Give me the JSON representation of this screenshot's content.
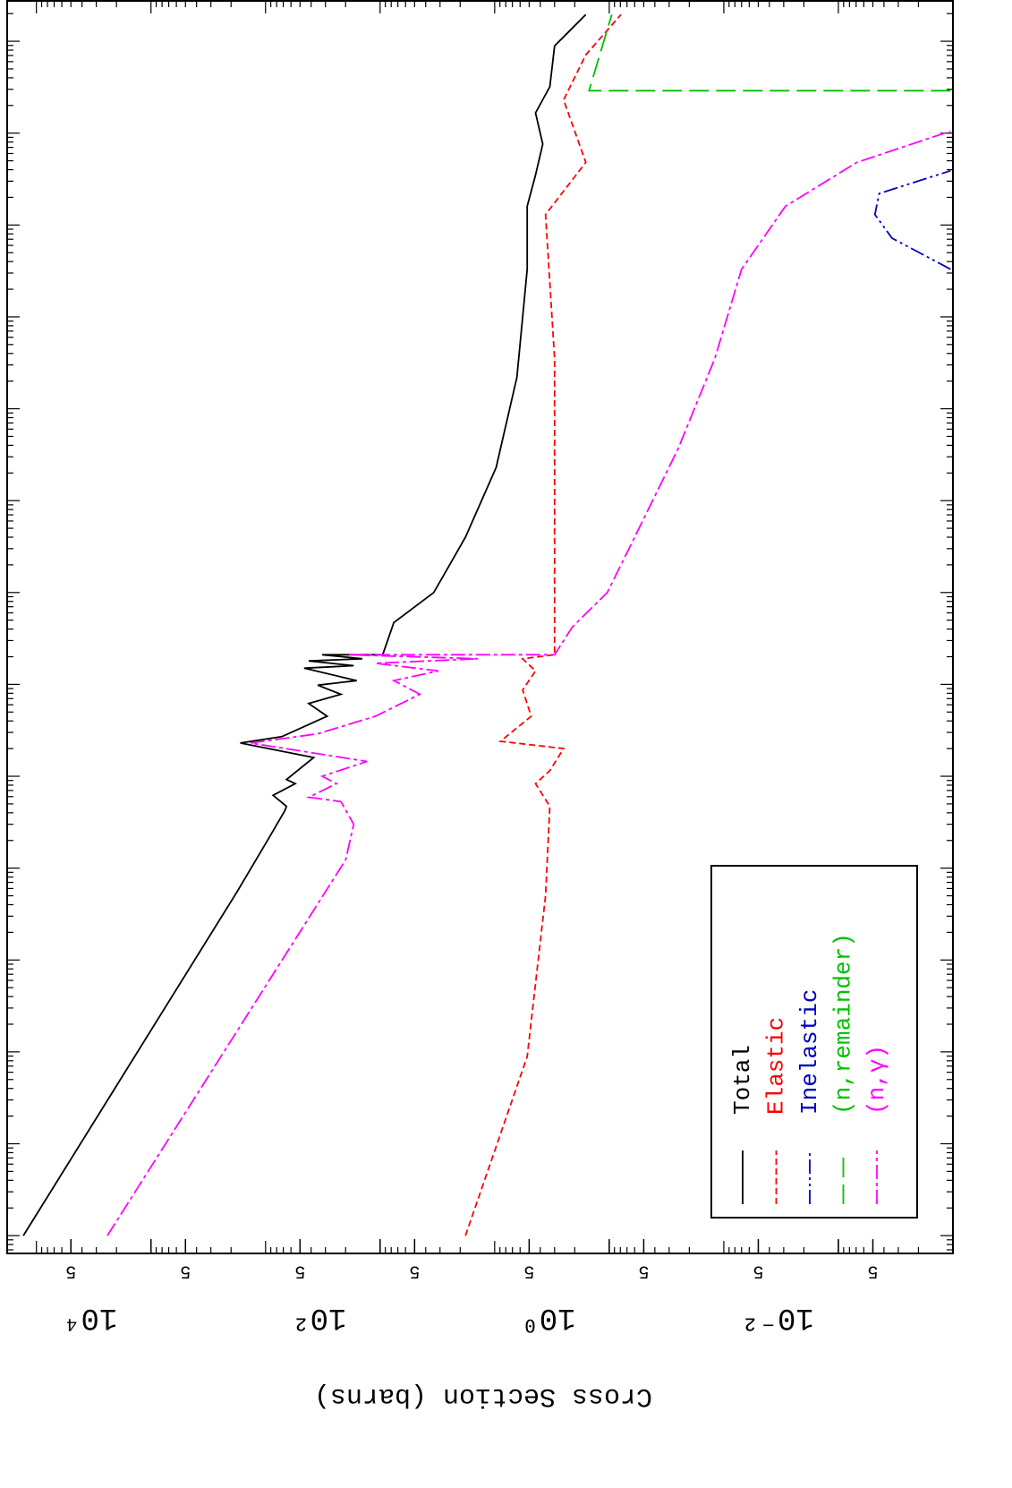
{
  "chart_data": {
    "type": "line",
    "xscale": "log",
    "yscale": "log",
    "grid": false,
    "legend_position": "lower left",
    "ylabel": "Cross Section (barns)",
    "xlim": [
      6.4e-07,
      27500000.0
    ],
    "ylim": [
      0.001,
      180000
    ],
    "yticks": [
      {
        "value": 50000,
        "label": "5"
      },
      {
        "value": 10000,
        "label": "10⁴"
      },
      {
        "value": 5000,
        "label": "5"
      },
      {
        "value": 500,
        "label": "5"
      },
      {
        "value": 100,
        "label": "10²"
      },
      {
        "value": 50,
        "label": "5"
      },
      {
        "value": 5,
        "label": "5"
      },
      {
        "value": 1,
        "label": "10⁰"
      },
      {
        "value": 0.5,
        "label": "5"
      },
      {
        "value": 0.05,
        "label": "5"
      },
      {
        "value": 0.01,
        "label": "10⁻²"
      },
      {
        "value": 0.005,
        "label": "5"
      }
    ],
    "series": [
      {
        "name": "Total",
        "color": "#000000",
        "dash": "none",
        "x": [
          1e-06,
          0.0056,
          0.021,
          0.042,
          0.047,
          0.062,
          0.083,
          0.092,
          0.16,
          0.23,
          0.27,
          0.45,
          0.62,
          0.78,
          0.98,
          1.1,
          1.5,
          1.6,
          1.8,
          1.9,
          2.1,
          2.1,
          4.7,
          10,
          40,
          230,
          2200,
          33000,
          160000,
          350000,
          760000,
          1660000,
          3200000,
          8900000,
          19500000
        ],
        "values": [
          130000,
          1760,
          940,
          680,
          656,
          860,
          550,
          656,
          380,
          1660,
          720,
          290,
          420,
          220,
          350,
          160,
          460,
          170,
          420,
          143,
          320,
          95,
          76,
          34,
          18,
          9.7,
          6.4,
          5.2,
          5.2,
          4.4,
          3.8,
          4.4,
          3.3,
          3.0,
          1.6
        ]
      },
      {
        "name": "Elastic",
        "color": "#ff0000",
        "dash": "7,4",
        "x": [
          1e-06,
          8.9e-05,
          0.005,
          0.047,
          0.083,
          0.115,
          0.2,
          0.24,
          0.45,
          0.87,
          1.4,
          1.9,
          2.1,
          3500,
          130000,
          310000,
          480000,
          2300000,
          7100000,
          19500000
        ],
        "values": [
          18,
          5.2,
          3.6,
          3.3,
          4.4,
          3.3,
          2.5,
          8.9,
          4.8,
          5.7,
          4.4,
          5.7,
          3.0,
          3.0,
          3.6,
          2.1,
          1.6,
          2.5,
          1.6,
          0.79
        ]
      },
      {
        "name": "Inelastic",
        "color": "#0000c0",
        "dash": "16,4,3,4,3,4",
        "x": [
          33000,
          72000,
          130000,
          220000,
          390000
        ],
        "values": [
          0.00105,
          0.0034,
          0.0048,
          0.0044,
          0.00105
        ]
      },
      {
        "name": "(n,remainder)",
        "color": "#00c000",
        "dash": "22,8",
        "x": [
          2900000,
          2900000,
          19500000
        ],
        "values": [
          0.00105,
          1.5,
          0.95
        ]
      },
      {
        "name": "(n,γ)",
        "color": "#ff00ff",
        "dash": "16,4,4,4",
        "x": [
          1e-06,
          0.0123,
          0.03,
          0.053,
          0.059,
          0.083,
          0.1,
          0.145,
          0.23,
          0.29,
          0.45,
          0.78,
          1.1,
          1.4,
          1.7,
          1.9,
          2.1,
          2.1,
          4.2,
          10,
          40,
          370,
          3500,
          33000,
          160000,
          480000,
          1050000
        ],
        "values": [
          24000,
          200,
          170,
          220,
          420,
          240,
          320,
          130,
          1350,
          350,
          110,
          45,
          76,
          31,
          110,
          14,
          190,
          3.0,
          2.1,
          1.04,
          0.6,
          0.25,
          0.12,
          0.07,
          0.029,
          0.0069,
          0.00105
        ]
      }
    ]
  }
}
